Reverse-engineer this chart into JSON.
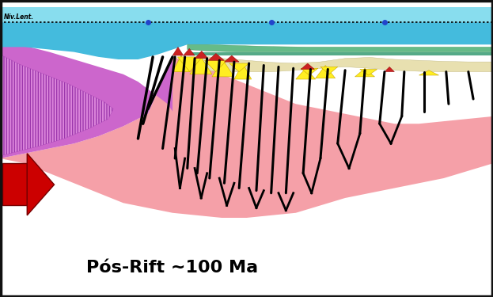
{
  "title": "Pós-Rift ~100 Ma",
  "title_fontsize": 16,
  "sea_level_label": "Nív.Lent.",
  "colors": {
    "pink_basement": "#f5a0a8",
    "white": "#ffffff",
    "purple": "#cc66cc",
    "purple_light": "#dd88dd",
    "cyan_dark": "#44bbdd",
    "cyan_light": "#88ddee",
    "green_dark": "#55aa66",
    "green_light": "#88cc88",
    "green_teal": "#66bbaa",
    "yellow": "#ffee22",
    "red_patches": "#cc2222",
    "cream": "#e8e0b0",
    "gray_stripe": "#aaaaaa",
    "blue_dot": "#2244cc",
    "black": "#000000",
    "red_arrow": "#cc0000",
    "border": "#111111"
  },
  "xlim": [
    0,
    10
  ],
  "ylim": [
    0,
    6
  ],
  "aspect": "auto"
}
